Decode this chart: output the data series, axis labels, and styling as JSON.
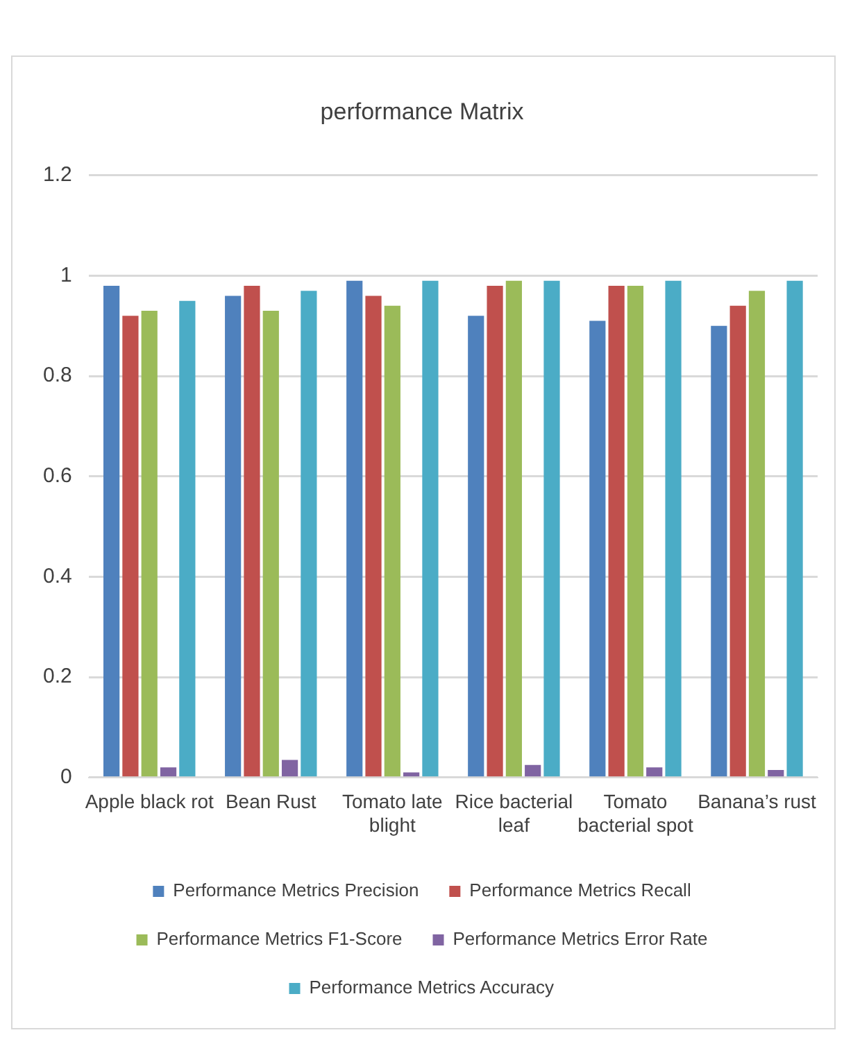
{
  "chart_data": {
    "type": "bar",
    "title": "performance Matrix",
    "categories": [
      "Apple black rot",
      "Bean Rust",
      "Tomato late blight",
      "Rice bacterial leaf",
      "Tomato bacterial spot",
      "Banana’s rust"
    ],
    "series": [
      {
        "name": "Performance Metrics Precision",
        "color": "#4f81bd",
        "values": [
          0.98,
          0.96,
          0.99,
          0.92,
          0.91,
          0.9
        ]
      },
      {
        "name": "Performance Metrics Recall",
        "color": "#c0504d",
        "values": [
          0.92,
          0.98,
          0.96,
          0.98,
          0.98,
          0.94
        ]
      },
      {
        "name": "Performance Metrics F1-Score",
        "color": "#9bbb59",
        "values": [
          0.93,
          0.93,
          0.94,
          0.99,
          0.98,
          0.97
        ]
      },
      {
        "name": "Performance Metrics Error Rate",
        "color": "#8064a2",
        "values": [
          0.02,
          0.035,
          0.01,
          0.025,
          0.02,
          0.015
        ]
      },
      {
        "name": "Performance Metrics Accuracy",
        "color": "#4bacc6",
        "values": [
          0.95,
          0.97,
          0.99,
          0.99,
          0.99,
          0.99
        ]
      }
    ],
    "ylim": [
      0,
      1.2
    ],
    "yticks": [
      0,
      0.2,
      0.4,
      0.6,
      0.8,
      1,
      1.2
    ],
    "grid": "y",
    "legend": "bottom"
  }
}
